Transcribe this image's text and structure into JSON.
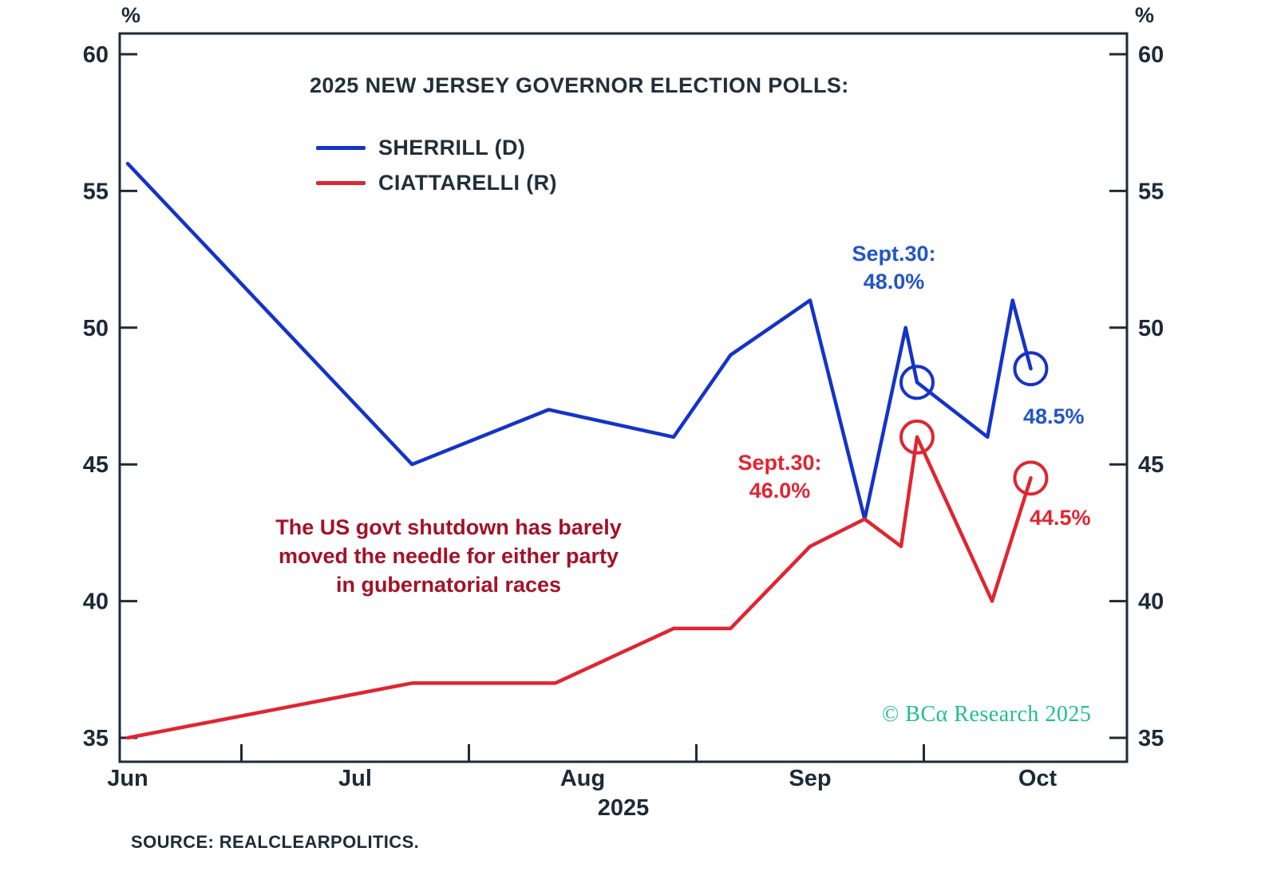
{
  "title": "2025 NEW JERSEY GOVERNOR ELECTION POLLS:",
  "source": "SOURCE: REALCLEARPOLITICS.",
  "annotations": {
    "sherrill_sept30": "Sept.30:\n48.0%",
    "sherrill_latest": "48.5%",
    "ciattarelli_sept30": "Sept.30:\n46.0%",
    "ciattarelli_latest": "44.5%",
    "note": "The US govt shutdown has barely\nmoved the needle for either party\nin gubernatorial races",
    "copyright": "© BCα Research 2025"
  },
  "colors": {
    "axis": "#1d2a38",
    "text": "#222f3a",
    "note": "#a31227",
    "copyright": "#1ec08d",
    "blue_text": "#2155c8",
    "red_text": "#e02531"
  },
  "chart_data": {
    "type": "line",
    "title": "2025 NEW JERSEY GOVERNOR ELECTION POLLS:",
    "y_unit": "%",
    "ylim": [
      35,
      60
    ],
    "y_ticks": [
      35,
      40,
      45,
      50,
      55,
      60
    ],
    "months": [
      "Jun",
      "Jul",
      "Aug",
      "Sep",
      "Oct"
    ],
    "year": "2025",
    "x_unit": "month position (Jun 2025 = 0, Oct 2025 = 4)",
    "legend_position": "top-left inside plot",
    "grid": false,
    "series": [
      {
        "name": "SHERRILL (D)",
        "color": "#1433c9",
        "points": [
          [
            0,
            56
          ],
          [
            1.25,
            45
          ],
          [
            1.85,
            47
          ],
          [
            2.4,
            46
          ],
          [
            2.65,
            49
          ],
          [
            3.0,
            51
          ],
          [
            3.24,
            43
          ],
          [
            3.42,
            50
          ],
          [
            3.47,
            48
          ],
          [
            3.78,
            46
          ],
          [
            3.89,
            51
          ],
          [
            3.97,
            48.5
          ]
        ],
        "markers": [
          [
            3.47,
            48
          ],
          [
            3.97,
            48.5
          ]
        ],
        "callouts": [
          "Sept.30: 48.0%",
          "latest 48.5%"
        ]
      },
      {
        "name": "CIATTARELLI (R)",
        "color": "#e02531",
        "points": [
          [
            0,
            35
          ],
          [
            1.25,
            37
          ],
          [
            1.88,
            37
          ],
          [
            2.4,
            39
          ],
          [
            2.65,
            39
          ],
          [
            3.0,
            42
          ],
          [
            3.24,
            43
          ],
          [
            3.4,
            42
          ],
          [
            3.47,
            46
          ],
          [
            3.8,
            40
          ],
          [
            3.97,
            44.5
          ]
        ],
        "markers": [
          [
            3.47,
            46
          ],
          [
            3.97,
            44.5
          ]
        ],
        "callouts": [
          "Sept.30: 46.0%",
          "latest 44.5%"
        ]
      }
    ]
  }
}
